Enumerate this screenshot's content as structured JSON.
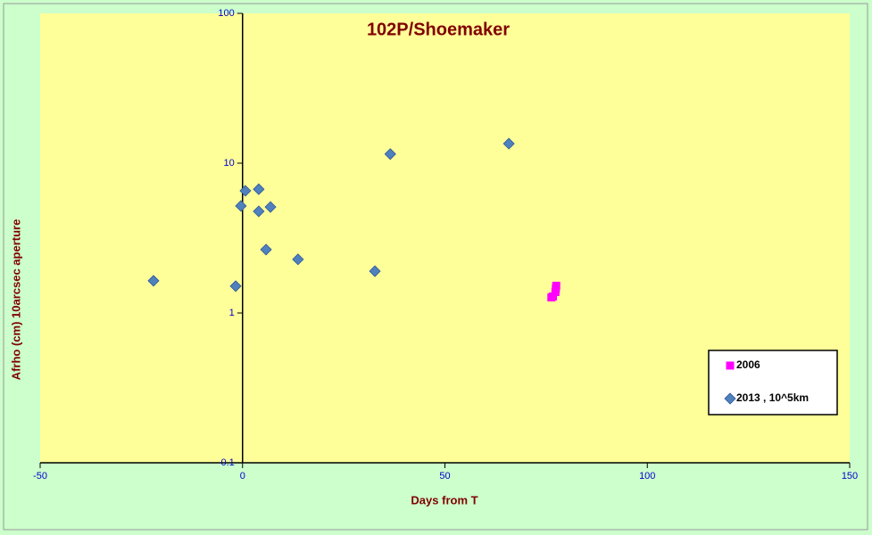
{
  "chart_data": {
    "type": "scatter",
    "title": "102P/Shoemaker",
    "x_label": "Days from T",
    "y_label": "Afrho (cm) 10arcsec aperture",
    "xlim": [
      -50,
      150
    ],
    "xticks": [
      -50,
      0,
      50,
      100,
      150
    ],
    "ylim": [
      0.1,
      100
    ],
    "yticks": [
      0.1,
      1,
      10,
      100
    ],
    "y_scale": "log",
    "legend": "lower right",
    "series": [
      {
        "name": "2006",
        "color": "#ff00ff",
        "marker": "square",
        "x": [
          76.3,
          76.7,
          77.3,
          77.4,
          77.5
        ],
        "values": [
          1.27,
          1.29,
          1.38,
          1.45,
          1.52
        ]
      },
      {
        "name": "2013 , 10^5km",
        "color": "#4f81bd",
        "marker": "diamond",
        "x": [
          -22,
          -1.7,
          -0.4,
          0.7,
          4.0,
          4.0,
          5.8,
          6.9,
          13.7,
          32.7,
          36.5,
          65.8
        ],
        "values": [
          1.64,
          1.51,
          5.18,
          6.54,
          6.7,
          4.77,
          2.65,
          5.1,
          2.28,
          1.9,
          11.5,
          13.5
        ]
      }
    ]
  }
}
